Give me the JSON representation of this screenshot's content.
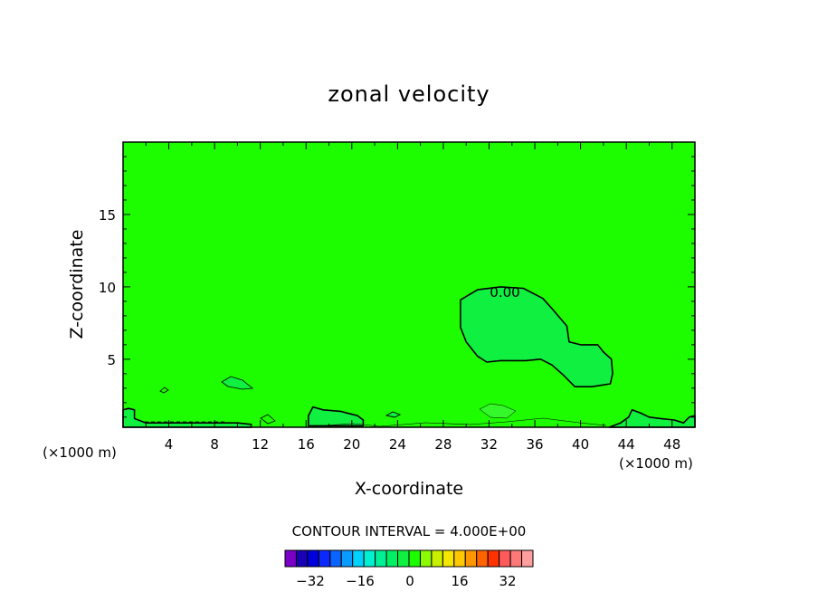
{
  "chart_data": {
    "type": "contour",
    "title": "zonal velocity",
    "xlabel": "X-coordinate",
    "ylabel": "Z-coordinate",
    "x_unit": "(×1000 m)",
    "xlim": [
      0,
      50
    ],
    "ylim": [
      0.3,
      20
    ],
    "x_ticks": [
      4,
      8,
      12,
      16,
      20,
      24,
      28,
      32,
      36,
      40,
      44,
      48
    ],
    "y_ticks": [
      5,
      10,
      15
    ],
    "background_color": "#1efc00",
    "contour_labels": [
      {
        "text": "0.00",
        "x": 33.3,
        "z": 9.6
      }
    ],
    "regions": [
      {
        "name": "zero-contour-region",
        "color": "#10f040",
        "outline": [
          [
            29.5,
            9.1
          ],
          [
            31,
            9.8
          ],
          [
            33,
            10.0
          ],
          [
            35,
            9.9
          ],
          [
            36.7,
            9.2
          ],
          [
            37.5,
            8.5
          ],
          [
            38.8,
            7.3
          ],
          [
            39,
            6.2
          ],
          [
            40,
            6.0
          ],
          [
            41.5,
            6.0
          ],
          [
            42,
            5.5
          ],
          [
            42.7,
            5.0
          ],
          [
            42.8,
            4.0
          ],
          [
            42.6,
            3.3
          ],
          [
            41,
            3.1
          ],
          [
            39.5,
            3.1
          ],
          [
            38.5,
            3.9
          ],
          [
            37.5,
            4.6
          ],
          [
            36.5,
            5.0
          ],
          [
            35.2,
            4.9
          ],
          [
            33,
            4.9
          ],
          [
            31.8,
            4.8
          ],
          [
            31,
            5.2
          ],
          [
            30,
            6.2
          ],
          [
            29.5,
            7.2
          ]
        ]
      },
      {
        "name": "left-surface-region",
        "color": "#10f040",
        "outline": [
          [
            0,
            1.5
          ],
          [
            0.5,
            1.6
          ],
          [
            1,
            1.5
          ],
          [
            1,
            0.9
          ],
          [
            2,
            0.6
          ],
          [
            6,
            0.6
          ],
          [
            10,
            0.6
          ],
          [
            11.2,
            0.5
          ],
          [
            11.2,
            0.3
          ],
          [
            0,
            0.3
          ]
        ]
      },
      {
        "name": "mid-surface-region",
        "color": "#10f040",
        "outline": [
          [
            16.2,
            1.1
          ],
          [
            16.6,
            1.7
          ],
          [
            17.5,
            1.5
          ],
          [
            19,
            1.4
          ],
          [
            20.5,
            1.1
          ],
          [
            21,
            0.8
          ],
          [
            21,
            0.4
          ],
          [
            16.2,
            0.4
          ]
        ]
      },
      {
        "name": "right-surface-region",
        "color": "#10f040",
        "outline": [
          [
            42.5,
            0.3
          ],
          [
            43.5,
            0.6
          ],
          [
            44.2,
            1.0
          ],
          [
            44.5,
            1.5
          ],
          [
            45.2,
            1.3
          ],
          [
            46,
            1.0
          ],
          [
            47,
            0.9
          ],
          [
            48.2,
            0.8
          ],
          [
            49,
            0.6
          ],
          [
            49.5,
            1.0
          ],
          [
            50,
            1.1
          ],
          [
            50,
            0.3
          ]
        ]
      }
    ],
    "contour_interval_text": "CONTOUR INTERVAL = 4.000E+00",
    "colorbar": {
      "tick_labels": [
        "-32",
        "-16",
        "0",
        "16",
        "32"
      ],
      "colors": [
        "#7a00c8",
        "#1a00b4",
        "#0000dc",
        "#0a28ff",
        "#0a64ff",
        "#0a9bff",
        "#00d2ff",
        "#00f0d2",
        "#00f098",
        "#00f064",
        "#10f040",
        "#1efc00",
        "#8cfa00",
        "#c8f000",
        "#f5e600",
        "#ffc800",
        "#ff9600",
        "#ff6400",
        "#ff3200",
        "#ff5a5a",
        "#ff7878",
        "#ff9e9e"
      ]
    }
  }
}
